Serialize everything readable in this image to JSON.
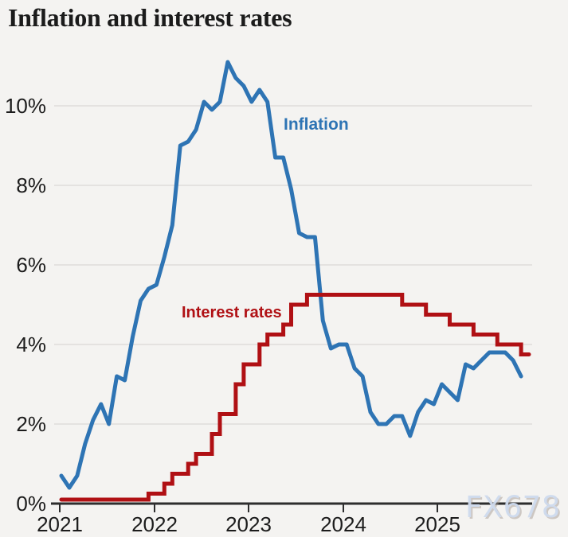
{
  "page": {
    "title": "Inflation and interest rates",
    "watermark": "FX678"
  },
  "colors": {
    "inflation": "#2e74b4",
    "interest_rates": "#b01014",
    "background": "#f4f3f1",
    "gridline": "#dedcda",
    "axis": "#2d2d2d",
    "title_text": "#1b1b1b",
    "watermark_fill": "#cfdbee",
    "watermark_shadow": "#9e948a"
  },
  "chart_data": {
    "type": "line",
    "title": "Inflation and interest rates",
    "xlabel": "",
    "ylabel": "",
    "unit": "%",
    "frequency": "monthly",
    "x_start": "2021-01",
    "x_end": "2025-12",
    "ylim": [
      0,
      11.6
    ],
    "grid": "horizontal",
    "legend_position": "inline-labels",
    "x_ticks": [
      "2021",
      "2022",
      "2023",
      "2024",
      "2025"
    ],
    "y_tick_labels": [
      "0%",
      "2%",
      "4%",
      "6%",
      "8%",
      "10%"
    ],
    "y_tick_values": [
      0,
      2,
      4,
      6,
      8,
      10
    ],
    "series": [
      {
        "name": "Inflation",
        "type": "line",
        "color": "#2e74b4",
        "start": "2021-01",
        "values": [
          0.7,
          0.4,
          0.7,
          1.5,
          2.1,
          2.5,
          2.0,
          3.2,
          3.1,
          4.2,
          5.1,
          5.4,
          5.5,
          6.2,
          7.0,
          9.0,
          9.1,
          9.4,
          10.1,
          9.9,
          10.1,
          11.1,
          10.7,
          10.5,
          10.1,
          10.4,
          10.1,
          8.7,
          8.7,
          7.9,
          6.8,
          6.7,
          6.7,
          4.6,
          3.9,
          4.0,
          4.0,
          3.4,
          3.2,
          2.3,
          2.0,
          2.0,
          2.2,
          2.2,
          1.7,
          2.3,
          2.6,
          2.5,
          3.0,
          2.8,
          2.6,
          3.5,
          3.4,
          3.6,
          3.8,
          3.8,
          3.8,
          3.6,
          3.2
        ]
      },
      {
        "name": "Interest rates",
        "type": "step",
        "color": "#b01014",
        "extend_to": "2025-12",
        "changes": [
          [
            "2021-01",
            0.1
          ],
          [
            "2021-12",
            0.25
          ],
          [
            "2022-02",
            0.5
          ],
          [
            "2022-03",
            0.75
          ],
          [
            "2022-05",
            1.0
          ],
          [
            "2022-06",
            1.25
          ],
          [
            "2022-08",
            1.75
          ],
          [
            "2022-09",
            2.25
          ],
          [
            "2022-11",
            3.0
          ],
          [
            "2022-12",
            3.5
          ],
          [
            "2023-02",
            4.0
          ],
          [
            "2023-03",
            4.25
          ],
          [
            "2023-05",
            4.5
          ],
          [
            "2023-06",
            5.0
          ],
          [
            "2023-08",
            5.25
          ],
          [
            "2024-08",
            5.0
          ],
          [
            "2024-11",
            4.75
          ],
          [
            "2025-02",
            4.5
          ],
          [
            "2025-05",
            4.25
          ],
          [
            "2025-08",
            4.0
          ],
          [
            "2025-11",
            3.75
          ]
        ]
      }
    ]
  }
}
